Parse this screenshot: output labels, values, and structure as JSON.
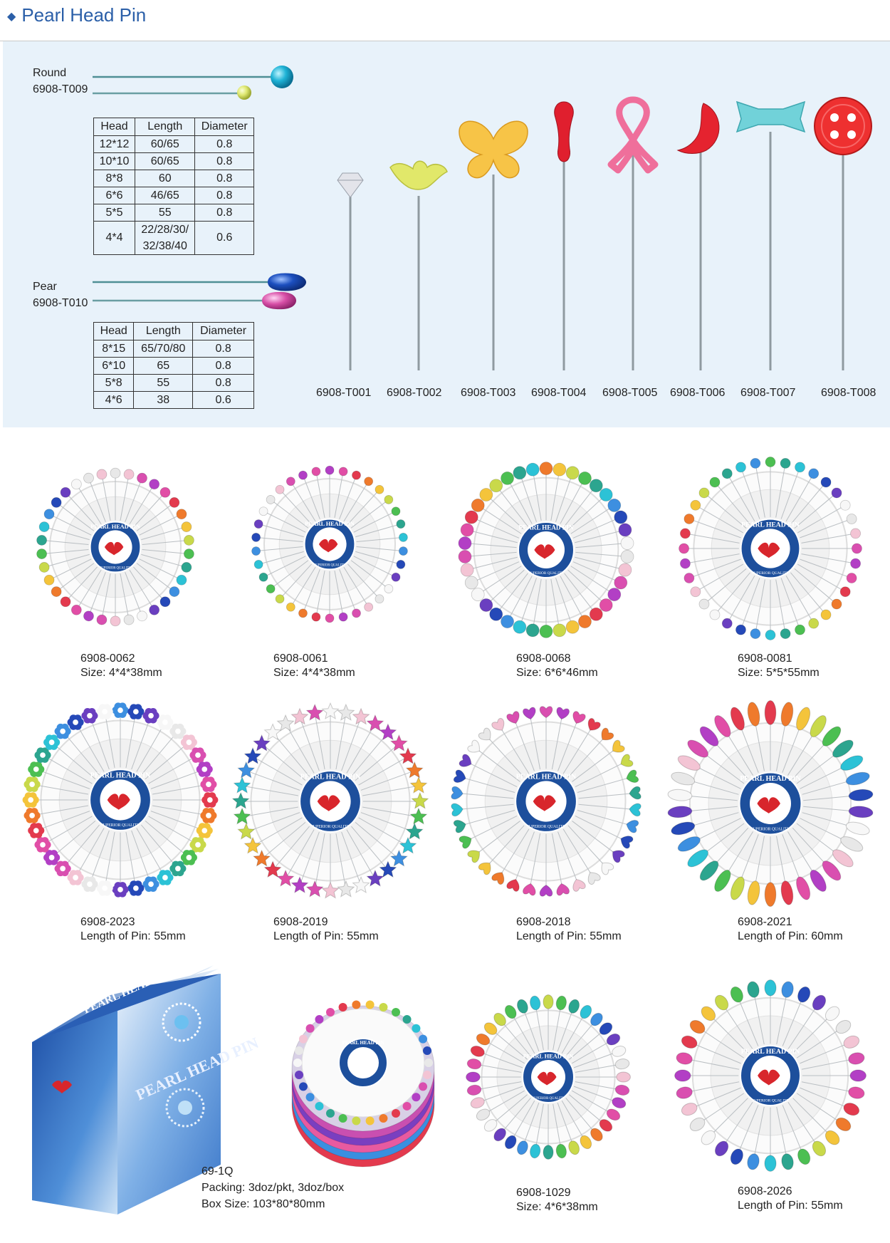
{
  "title": "Pearl Head Pin",
  "round": {
    "name": "Round",
    "code": "6908-T009",
    "table": {
      "headers": [
        "Head",
        "Length",
        "Diameter"
      ],
      "rows": [
        [
          "12*12",
          "60/65",
          "0.8"
        ],
        [
          "10*10",
          "60/65",
          "0.8"
        ],
        [
          "8*8",
          "60",
          "0.8"
        ],
        [
          "6*6",
          "46/65",
          "0.8"
        ],
        [
          "5*5",
          "55",
          "0.8"
        ],
        [
          "4*4",
          "22/28/30/\n32/38/40",
          "0.6"
        ]
      ]
    }
  },
  "pear": {
    "name": "Pear",
    "code": "6908-T010",
    "table": {
      "headers": [
        "Head",
        "Length",
        "Diameter"
      ],
      "rows": [
        [
          "8*15",
          "65/70/80",
          "0.8"
        ],
        [
          "6*10",
          "65",
          "0.8"
        ],
        [
          "5*8",
          "55",
          "0.8"
        ],
        [
          "4*6",
          "38",
          "0.6"
        ]
      ]
    }
  },
  "shape_pins": [
    {
      "code": "6908-T001",
      "shape": "diamond",
      "color": "#e0e0e6"
    },
    {
      "code": "6908-T002",
      "shape": "flower",
      "color": "#dde65a"
    },
    {
      "code": "6908-T003",
      "shape": "butterfly",
      "color": "#f6c23e"
    },
    {
      "code": "6908-T004",
      "shape": "drop",
      "color": "#e02030"
    },
    {
      "code": "6908-T005",
      "shape": "ribbon",
      "color": "#ee6f9b"
    },
    {
      "code": "6908-T006",
      "shape": "moon",
      "color": "#e4232f"
    },
    {
      "code": "6908-T007",
      "shape": "bow",
      "color": "#6fd1d8"
    },
    {
      "code": "6908-T008",
      "shape": "button",
      "color": "#ee2f2f"
    }
  ],
  "wheel_label": {
    "top": "PEARL HEAD PIN",
    "bottom": "SUPERIOR QUALITY"
  },
  "products": [
    {
      "code": "6908-0062",
      "spec": "Size: 4*4*38mm",
      "head": "round"
    },
    {
      "code": "6908-0061",
      "spec": "Size: 4*4*38mm",
      "head": "round"
    },
    {
      "code": "6908-0068",
      "spec": "Size: 6*6*46mm",
      "head": "round"
    },
    {
      "code": "6908-0081",
      "spec": "Size: 5*5*55mm",
      "head": "round"
    },
    {
      "code": "6908-2023",
      "spec": "Length of Pin: 55mm",
      "head": "flower"
    },
    {
      "code": "6908-2019",
      "spec": "Length of Pin: 55mm",
      "head": "star"
    },
    {
      "code": "6908-2018",
      "spec": "Length of Pin: 55mm",
      "head": "heart"
    },
    {
      "code": "6908-2021",
      "spec": "Length of Pin: 60mm",
      "head": "leaf"
    },
    {
      "code": "6908-1029",
      "spec": "Size: 4*6*38mm",
      "head": "pear"
    },
    {
      "code": "6908-2026",
      "spec": "Length of Pin: 55mm",
      "head": "pear"
    }
  ],
  "box": {
    "code": "69-1Q",
    "packing": "Packing: 3doz/pkt, 3doz/box",
    "size": "Box Size: 103*80*80mm",
    "brand_text": "PEARL HEAD PIN"
  },
  "colors": {
    "title": "#2b5fa8",
    "panel": "#e8f2fa",
    "label_blue": "#1d4f9c",
    "bird": "#d8262c"
  }
}
